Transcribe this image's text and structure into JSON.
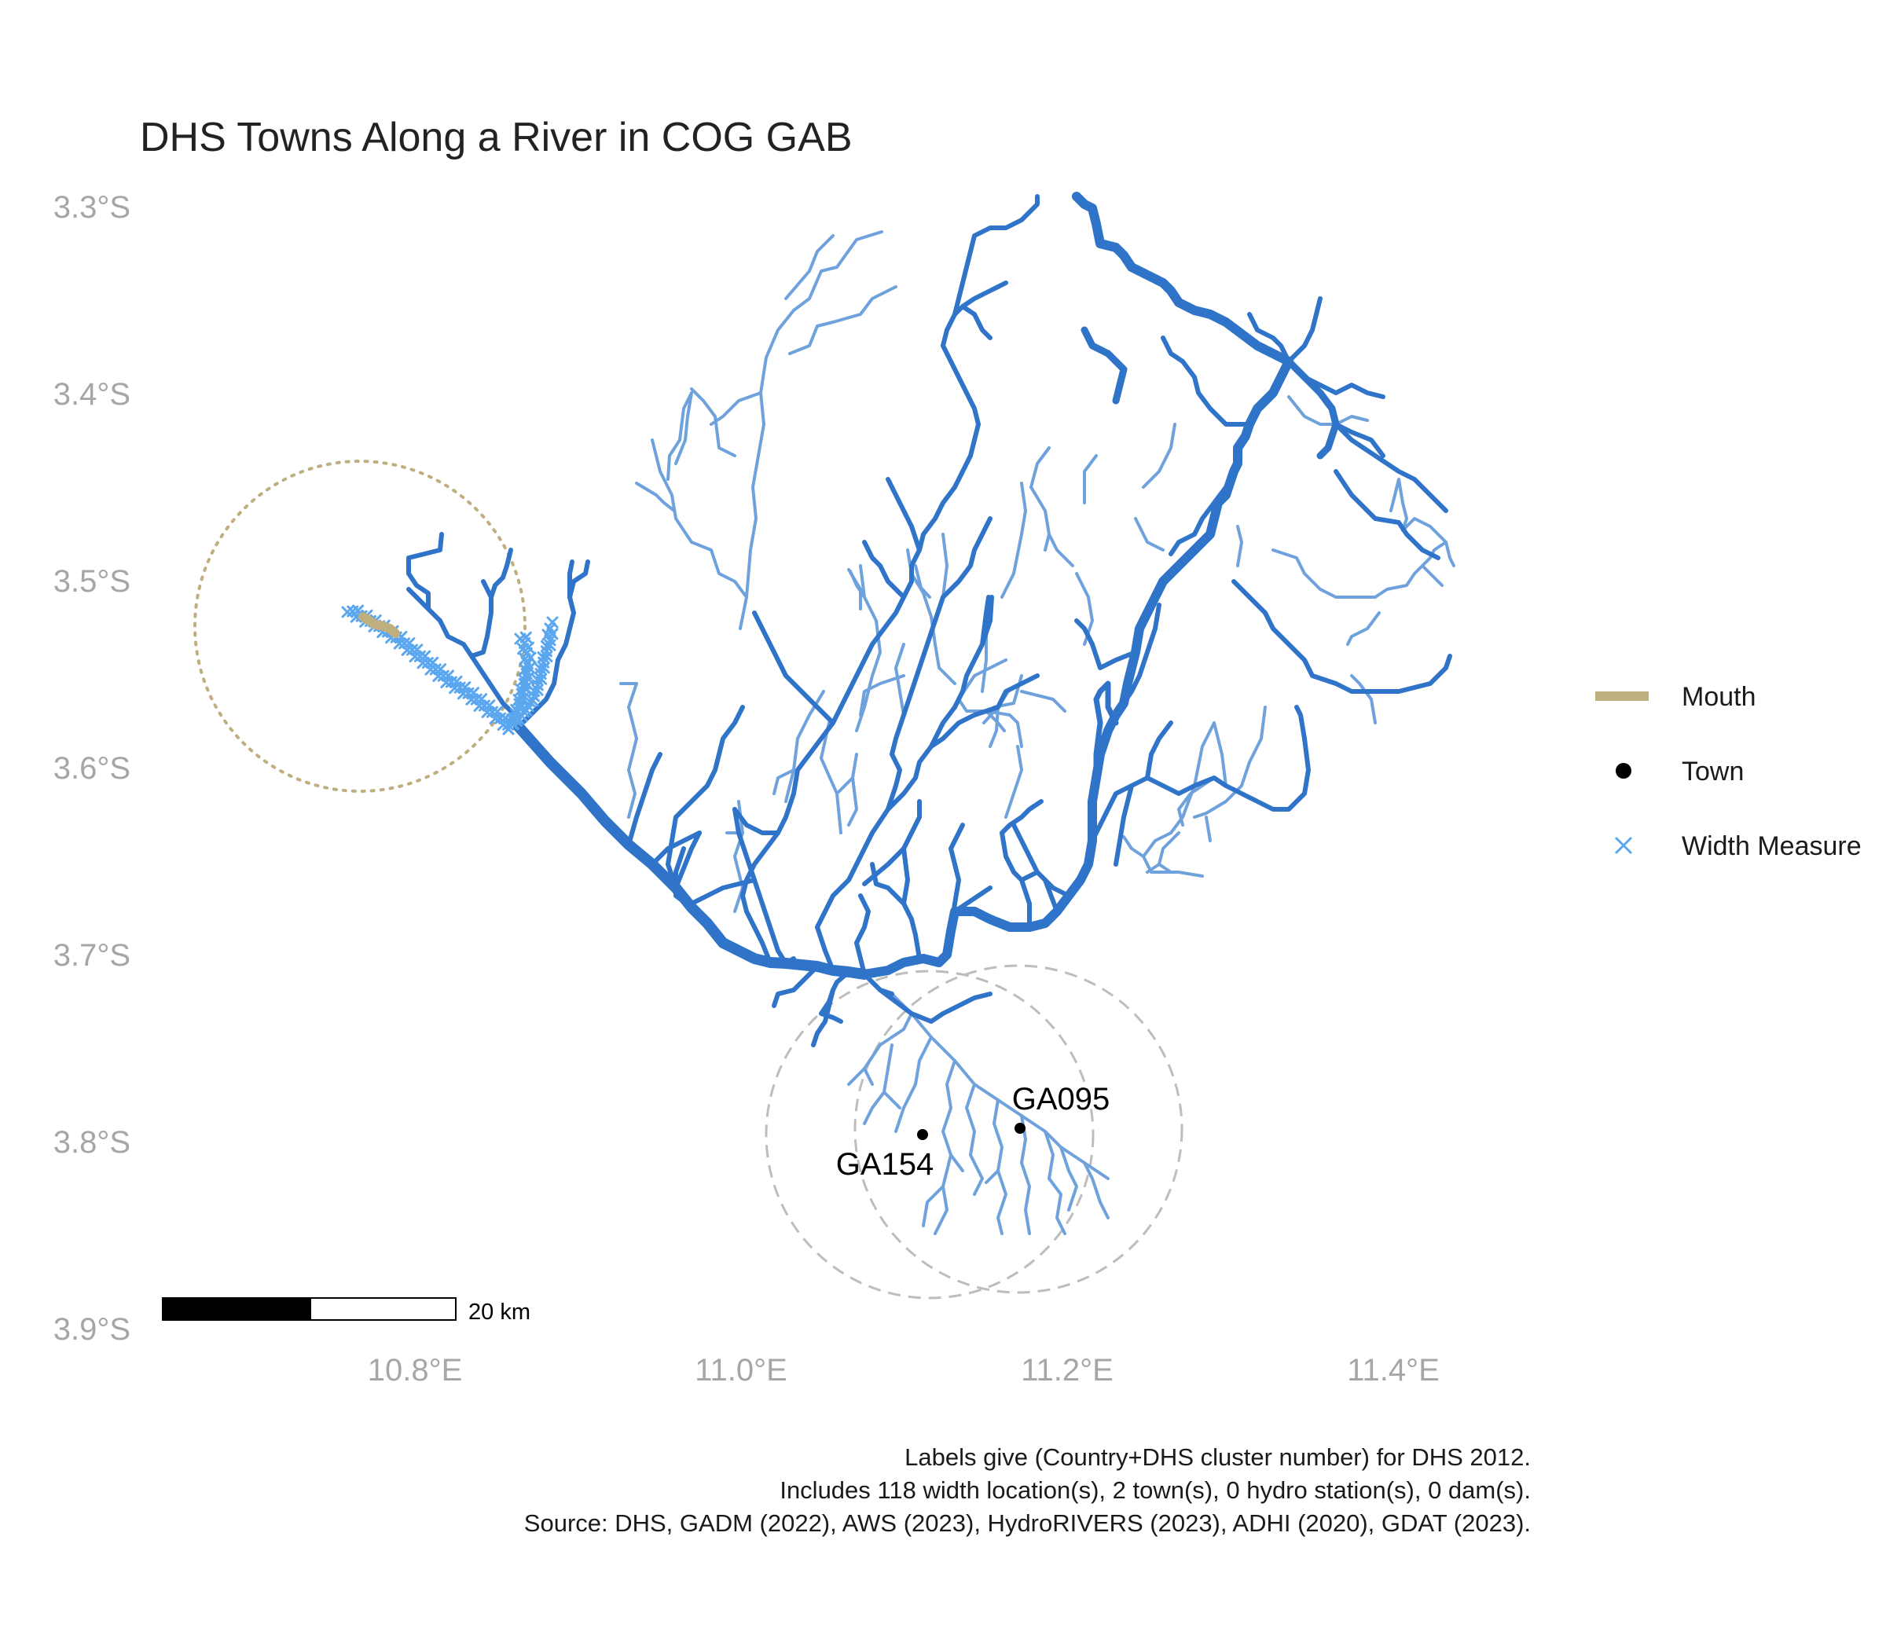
{
  "title": "DHS Towns Along a River in COG GAB",
  "axes": {
    "lat_ticks": [
      "3.3°S",
      "3.4°S",
      "3.5°S",
      "3.6°S",
      "3.7°S",
      "3.8°S",
      "3.9°S"
    ],
    "lon_ticks": [
      "10.8°E",
      "11.0°E",
      "11.2°E",
      "11.4°E"
    ]
  },
  "legend": {
    "mouth": "Mouth",
    "town": "Town",
    "width_measure": "Width Measure"
  },
  "towns": [
    {
      "label": "GA095",
      "lon": 11.17,
      "lat": -3.795
    },
    {
      "label": "GA154",
      "lon": 11.11,
      "lat": -3.798
    }
  ],
  "scale_bar": {
    "label": "20 km"
  },
  "caption": [
    "Labels give (Country+DHS cluster number) for DHS 2012.",
    "Includes 118 width location(s), 2 town(s), 0 hydro station(s), 0 dam(s).",
    "Source: DHS, GADM (2022), AWS (2023), HydroRIVERS (2023), ADHI (2020), GDAT (2023)."
  ],
  "colors": {
    "river_main": "#2f74c8",
    "river_light": "#6fa2dc",
    "mouth": "#bfae7e",
    "width_measure": "#5aa7f0",
    "town": "#000000",
    "buffer_circle": "#bdbdbd"
  }
}
